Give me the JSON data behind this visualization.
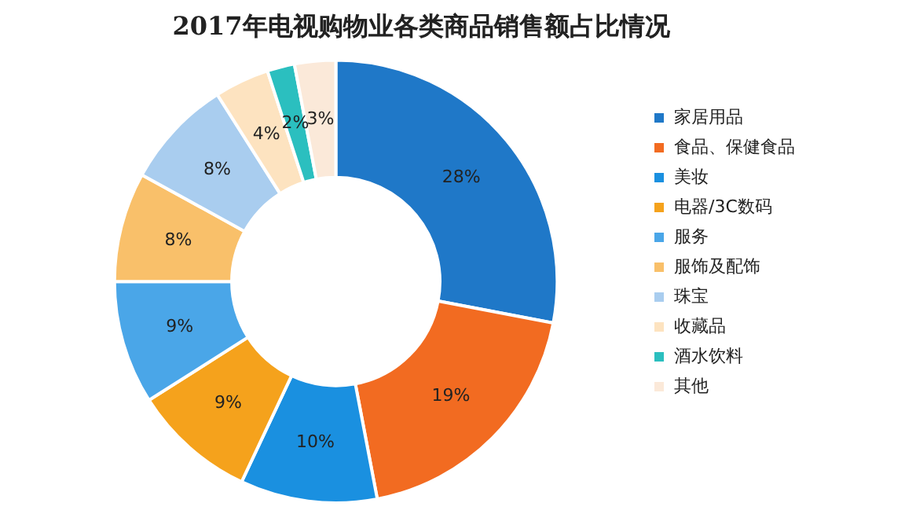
{
  "chart_data": {
    "type": "donut",
    "title": "2017年电视购物业各类商品销售额占比情况",
    "categories": [
      "家居用品",
      "食品、保健食品",
      "美妆",
      "电器/3C数码",
      "服务",
      "服饰及配饰",
      "珠宝",
      "收藏品",
      "酒水饮料",
      "其他"
    ],
    "values": [
      28,
      19,
      10,
      9,
      9,
      8,
      8,
      4,
      2,
      3
    ],
    "value_labels": [
      "28%",
      "19%",
      "10%",
      "9%",
      "9%",
      "8%",
      "8%",
      "4%",
      "2%",
      "3%"
    ],
    "colors": [
      "#1f78c8",
      "#f26b21",
      "#1a90e0",
      "#f5a21c",
      "#4aa6e8",
      "#f9c06a",
      "#a9cdef",
      "#fde3c0",
      "#2bbfbf",
      "#fbe9d9"
    ],
    "legend": "right"
  }
}
